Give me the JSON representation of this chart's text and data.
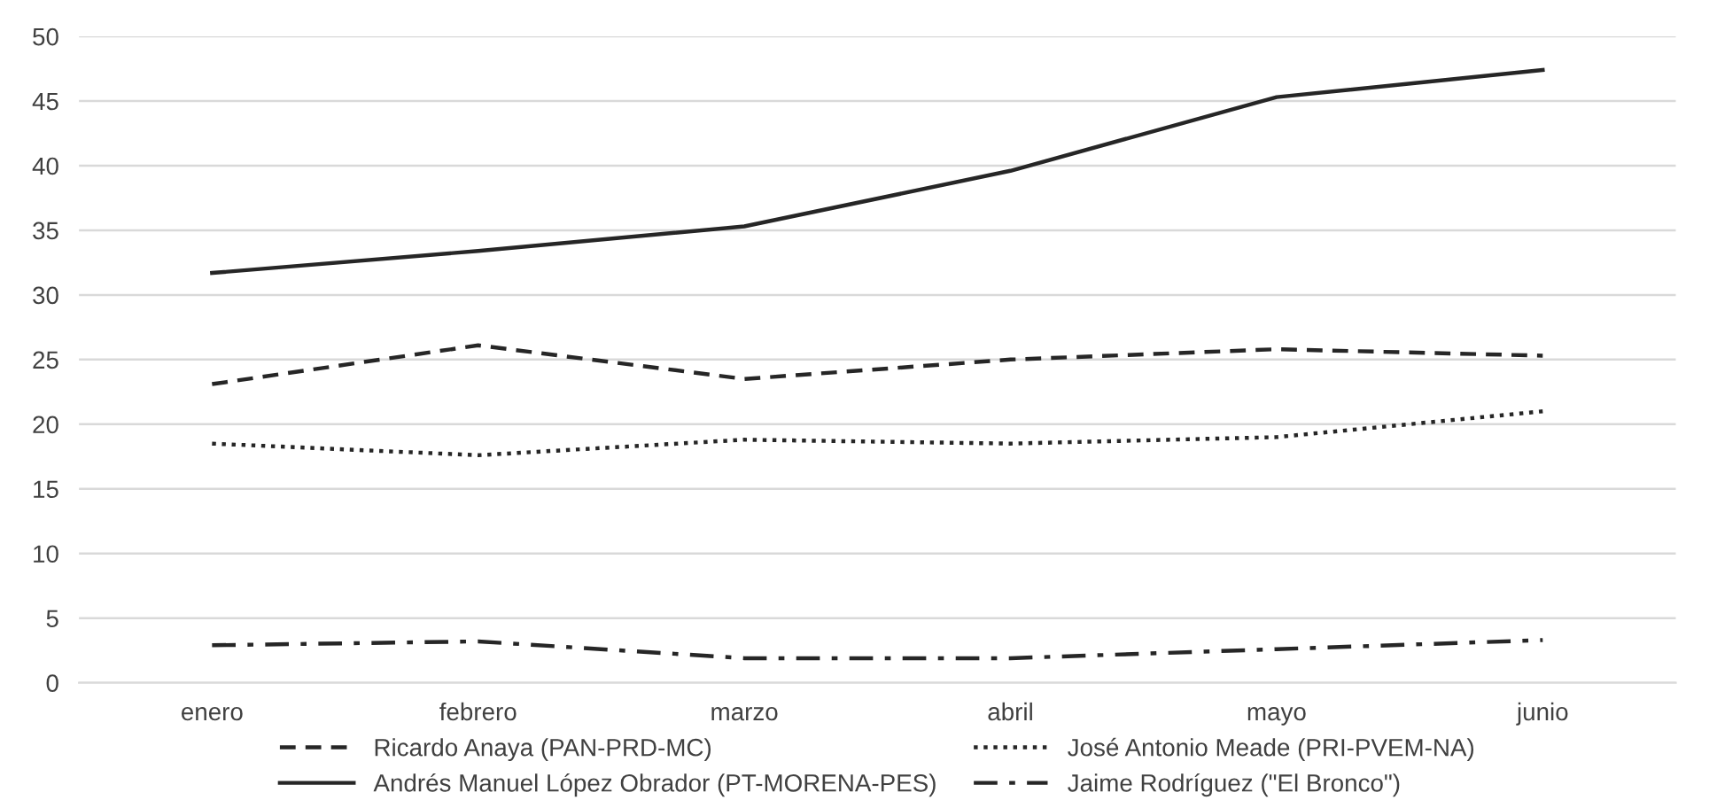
{
  "chart_data": {
    "type": "line",
    "categories": [
      "enero",
      "febrero",
      "marzo",
      "abril",
      "mayo",
      "junio"
    ],
    "series": [
      {
        "name": "Ricardo Anaya (PAN-PRD-MC)",
        "color": "#262626",
        "line_style": "dashed",
        "values": [
          23.1,
          26.1,
          23.5,
          25.0,
          25.8,
          25.3
        ]
      },
      {
        "name": "José Antonio Meade (PRI-PVEM-NA)",
        "color": "#262626",
        "line_style": "dotted",
        "values": [
          18.5,
          17.6,
          18.8,
          18.5,
          19.0,
          21.0
        ]
      },
      {
        "name": "Andrés Manuel López Obrador (PT-MORENA-PES)",
        "color": "#262626",
        "line_style": "solid",
        "values": [
          31.7,
          33.4,
          35.3,
          39.6,
          45.3,
          47.4
        ]
      },
      {
        "name": "Jaime Rodríguez (\"El Bronco\")",
        "color": "#262626",
        "line_style": "dashdot",
        "values": [
          2.9,
          3.2,
          1.9,
          1.9,
          2.6,
          3.3
        ]
      }
    ],
    "ylim": [
      0,
      50
    ],
    "yticks": [
      0,
      5,
      10,
      15,
      20,
      25,
      30,
      35,
      40,
      45,
      50
    ],
    "grid": "y",
    "legend": "bottom",
    "marker": "none"
  }
}
